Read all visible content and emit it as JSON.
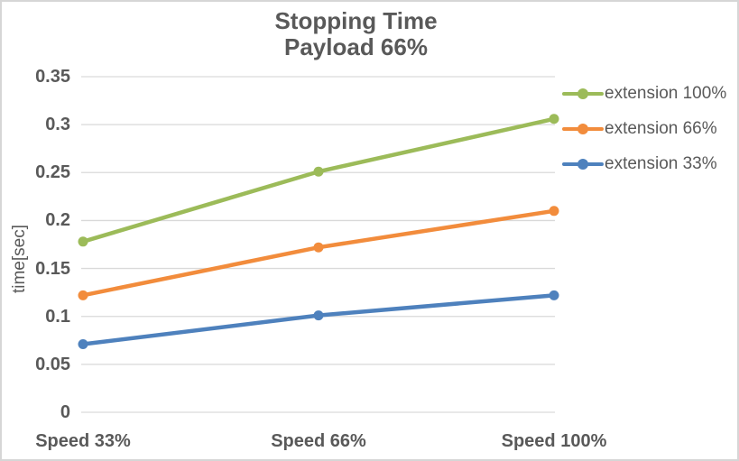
{
  "chart_title": {
    "line1": "Stopping Time",
    "line2": "Payload 66%"
  },
  "y_axis_title": "time[sec]",
  "colors": {
    "text": "#595959",
    "gridline": "#d9d9d9",
    "border": "#d6d6d6",
    "background": "#ffffff",
    "series_green": "#9cbb59",
    "series_orange": "#f28c3c",
    "series_blue": "#4e81bd"
  },
  "chart_data": {
    "type": "line",
    "title": "Stopping Time",
    "subtitle": "Payload 66%",
    "categories": [
      "Speed 33%",
      "Speed 66%",
      "Speed 100%"
    ],
    "series": [
      {
        "name": "extension 100%",
        "color": "#9cbb59",
        "values": [
          0.178,
          0.251,
          0.306
        ]
      },
      {
        "name": "extension 66%",
        "color": "#f28c3c",
        "values": [
          0.122,
          0.172,
          0.21
        ]
      },
      {
        "name": "extension 33%",
        "color": "#4e81bd",
        "values": [
          0.071,
          0.101,
          0.122
        ]
      }
    ],
    "xlabel": "",
    "ylabel": "time[sec]",
    "ylim": [
      0,
      0.35
    ],
    "ytick_step": 0.05,
    "yticks": [
      "0",
      "0.05",
      "0.1",
      "0.15",
      "0.2",
      "0.25",
      "0.3",
      "0.35"
    ],
    "grid": true,
    "legend_position": "right",
    "marker": "circle",
    "line_width": 4.5,
    "marker_radius": 5.5
  }
}
